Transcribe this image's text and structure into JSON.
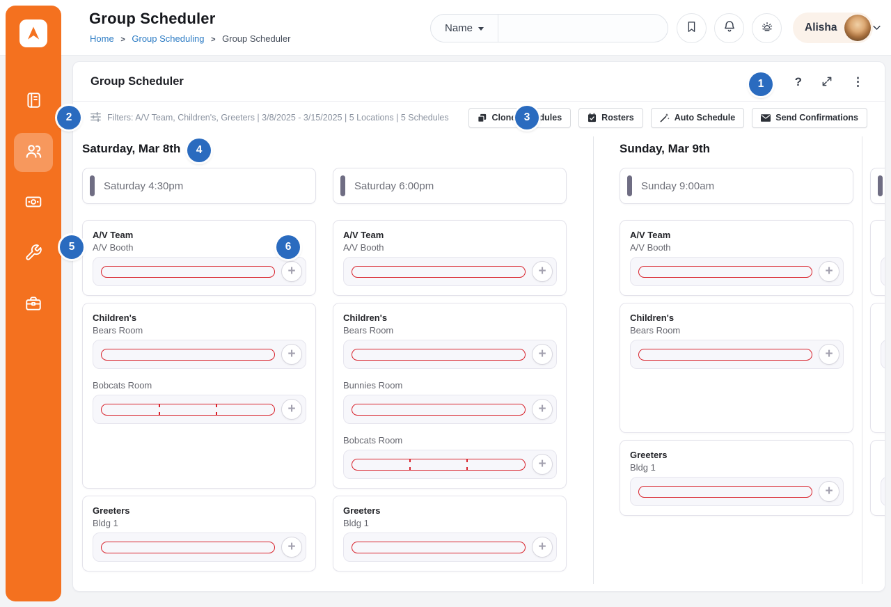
{
  "topbar": {
    "page_title": "Group Scheduler",
    "breadcrumb": {
      "home": "Home",
      "section": "Group Scheduling",
      "current": "Group Scheduler"
    },
    "search": {
      "field_label": "Name",
      "value": ""
    },
    "user_name": "Alisha"
  },
  "sidebar": {
    "items": [
      {
        "name": "journal",
        "active": false
      },
      {
        "name": "people",
        "active": true
      },
      {
        "name": "giving",
        "active": false
      },
      {
        "name": "tools",
        "active": false
      },
      {
        "name": "workplace",
        "active": false
      }
    ]
  },
  "panel": {
    "title": "Group Scheduler",
    "filters_summary": "Filters: A/V Team, Children's, Greeters | 3/8/2025 - 3/15/2025 | 5 Locations | 5 Schedules",
    "actions": [
      {
        "label": "Clone Schedules",
        "icon": "clone-icon"
      },
      {
        "label": "Rosters",
        "icon": "calendar-check-icon"
      },
      {
        "label": "Auto Schedule",
        "icon": "magic-wand-icon"
      },
      {
        "label": "Send Confirmations",
        "icon": "envelope-icon"
      }
    ]
  },
  "board": {
    "days": [
      {
        "label": "Saturday, Mar 8th",
        "occurrences": [
          {
            "time": "Saturday 4:30pm",
            "groups": [
              {
                "name": "A/V Team",
                "locations": [
                  {
                    "name": "A/V Booth",
                    "segments": 1
                  }
                ]
              },
              {
                "name": "Children's",
                "locations": [
                  {
                    "name": "Bears Room",
                    "segments": 1
                  },
                  {
                    "name": "Bobcats Room",
                    "segments": 3
                  }
                ]
              },
              {
                "name": "Greeters",
                "locations": [
                  {
                    "name": "Bldg 1",
                    "segments": 1
                  }
                ]
              }
            ]
          },
          {
            "time": "Saturday 6:00pm",
            "groups": [
              {
                "name": "A/V Team",
                "locations": [
                  {
                    "name": "A/V Booth",
                    "segments": 1
                  }
                ]
              },
              {
                "name": "Children's",
                "locations": [
                  {
                    "name": "Bears Room",
                    "segments": 1
                  },
                  {
                    "name": "Bunnies Room",
                    "segments": 1
                  },
                  {
                    "name": "Bobcats Room",
                    "segments": 3
                  }
                ]
              },
              {
                "name": "Greeters",
                "locations": [
                  {
                    "name": "Bldg 1",
                    "segments": 1
                  }
                ]
              }
            ]
          }
        ]
      },
      {
        "label": "Sunday, Mar 9th",
        "occurrences": [
          {
            "time": "Sunday 9:00am",
            "groups": [
              {
                "name": "A/V Team",
                "locations": [
                  {
                    "name": "A/V Booth",
                    "segments": 1
                  }
                ]
              },
              {
                "name": "Children's",
                "locations": [
                  {
                    "name": "Bears Room",
                    "segments": 1
                  }
                ]
              },
              {
                "name": "Greeters",
                "locations": [
                  {
                    "name": "Bldg 1",
                    "segments": 1
                  }
                ]
              }
            ]
          }
        ]
      },
      {
        "label": "",
        "occurrences": [
          {
            "time": "",
            "groups": [
              {
                "name": "",
                "locations": [
                  {
                    "name": "",
                    "segments": 1
                  }
                ]
              },
              {
                "name": "",
                "locations": [
                  {
                    "name": "",
                    "segments": 1
                  }
                ]
              },
              {
                "name": "",
                "locations": [
                  {
                    "name": "",
                    "segments": 1
                  }
                ]
              }
            ]
          }
        ]
      }
    ]
  },
  "callouts": [
    "1",
    "2",
    "3",
    "4",
    "5",
    "6"
  ],
  "colors": {
    "accent_orange": "#f4711f",
    "badge_blue": "#2a6bbf",
    "capacity_red": "#d8222b",
    "link_blue": "#2b7bc4"
  }
}
